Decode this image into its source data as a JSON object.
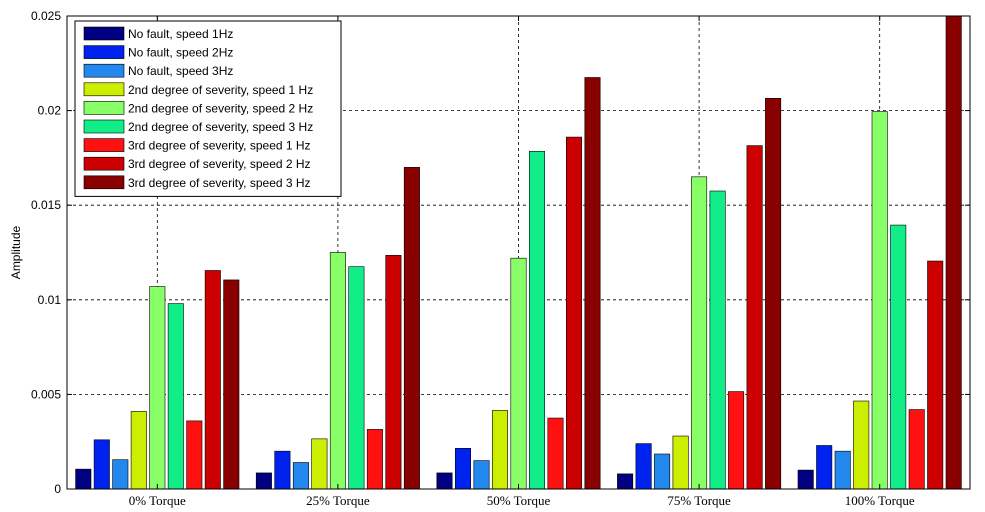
{
  "chart_data": {
    "type": "bar",
    "title": "",
    "xlabel": "",
    "ylabel": "Amplitude",
    "ylim": [
      0,
      0.025
    ],
    "yticks": [
      "0",
      "0.005",
      "0.01",
      "0.015",
      "0.02",
      "0.025"
    ],
    "grid": true,
    "legend_position": "top-left",
    "categories": [
      "0% Torque",
      "25% Torque",
      "50% Torque",
      "75% Torque",
      "100% Torque"
    ],
    "series": [
      {
        "name": "No fault, speed 1Hz",
        "color": "#000080",
        "values": [
          0.00105,
          0.00085,
          0.00085,
          0.0008,
          0.001
        ]
      },
      {
        "name": "No fault, speed 2Hz",
        "color": "#0022ee",
        "values": [
          0.0026,
          0.002,
          0.00215,
          0.0024,
          0.0023
        ]
      },
      {
        "name": "No fault, speed 3Hz",
        "color": "#2288ee",
        "values": [
          0.00155,
          0.0014,
          0.0015,
          0.00185,
          0.002
        ]
      },
      {
        "name": "2nd degree of severity, speed 1 Hz",
        "color": "#ccee00",
        "values": [
          0.0041,
          0.00265,
          0.00415,
          0.0028,
          0.00465
        ]
      },
      {
        "name": "2nd degree of severity, speed 2 Hz",
        "color": "#88ff66",
        "values": [
          0.0107,
          0.0125,
          0.0122,
          0.0165,
          0.01995
        ]
      },
      {
        "name": "2nd degree of severity, speed 3 Hz",
        "color": "#11ee88",
        "values": [
          0.0098,
          0.01175,
          0.01785,
          0.01575,
          0.01395
        ]
      },
      {
        "name": "3rd degree of severity, speed 1 Hz",
        "color": "#ff1111",
        "values": [
          0.0036,
          0.00315,
          0.00375,
          0.00515,
          0.0042
        ]
      },
      {
        "name": "3rd degree of severity, speed 2 Hz",
        "color": "#cc0000",
        "values": [
          0.01155,
          0.01235,
          0.0186,
          0.01815,
          0.01205
        ]
      },
      {
        "name": "3rd degree of severity, speed 3 Hz",
        "color": "#880000",
        "values": [
          0.01105,
          0.017,
          0.02175,
          0.02065,
          0.025
        ]
      }
    ]
  }
}
